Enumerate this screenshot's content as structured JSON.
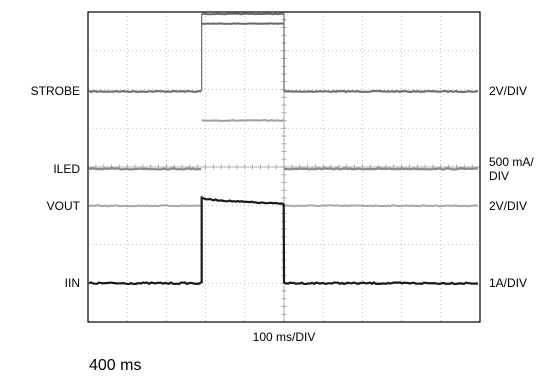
{
  "chart_data": {
    "type": "line",
    "title": "",
    "xlabel": "100 ms/DIV",
    "ylabel": "",
    "grid": true,
    "divisions": {
      "x": 10,
      "y": 8
    },
    "xlim": [
      0,
      10
    ],
    "ylim": [
      0,
      8
    ],
    "pulse": {
      "start_div": 2.9,
      "end_div": 5.0
    },
    "series": [
      {
        "name": "STROBE",
        "scale": "2V/DIV",
        "color": "#707070",
        "low_div": 5.95,
        "high_div": [
          7.7,
          7.95
        ]
      },
      {
        "name": "ILED",
        "scale": "500 mA/\nDIV",
        "color": "#8a8a8a",
        "low_div": 3.95,
        "high_div": [
          5.2
        ]
      },
      {
        "name": "VOUT",
        "scale": "2V/DIV",
        "color": "#a8a8a8",
        "low_div": 3.0,
        "high_div": [
          3.2,
          3.05
        ]
      },
      {
        "name": "IIN",
        "scale": "1A/DIV",
        "color": "#1a1a1a",
        "low_div": 1.0,
        "high_div": [
          3.2,
          3.05
        ]
      }
    ]
  },
  "footer": "400 ms"
}
